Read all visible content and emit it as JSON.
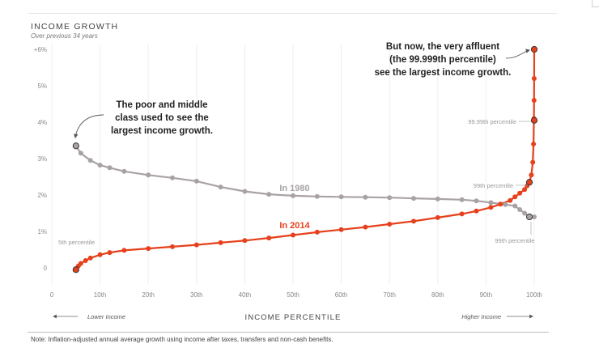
{
  "header": {
    "title": "INCOME GROWTH",
    "subtitle": "Over previous 34 years"
  },
  "footer": {
    "note": "Note: Inflation-adjusted annual average growth using income after taxes, transfers and non-cash benefits."
  },
  "colors": {
    "series_1980": "#a9a2a4",
    "series_2014": "#e6401c",
    "grid": "#eeeeee",
    "text": "#333333"
  },
  "chart_data": {
    "type": "line",
    "title": "INCOME GROWTH",
    "subtitle": "Over previous 34 years",
    "xlabel": "INCOME PERCENTILE",
    "ylabel": "",
    "xlim": [
      0,
      100
    ],
    "ylim": [
      -0.5,
      6.3
    ],
    "grid": true,
    "x_ticks": [
      {
        "value": 0,
        "label": "0"
      },
      {
        "value": 10,
        "label": "10th"
      },
      {
        "value": 20,
        "label": "20th"
      },
      {
        "value": 30,
        "label": "30th"
      },
      {
        "value": 40,
        "label": "40th"
      },
      {
        "value": 50,
        "label": "50th"
      },
      {
        "value": 60,
        "label": "60th"
      },
      {
        "value": 70,
        "label": "70th"
      },
      {
        "value": 80,
        "label": "80th"
      },
      {
        "value": 90,
        "label": "90th"
      },
      {
        "value": 100,
        "label": "100th"
      }
    ],
    "y_ticks": [
      {
        "value": 0,
        "label": "0"
      },
      {
        "value": 1,
        "label": "1%"
      },
      {
        "value": 2,
        "label": "2%"
      },
      {
        "value": 3,
        "label": "3%"
      },
      {
        "value": 4,
        "label": "4%"
      },
      {
        "value": 5,
        "label": "5%"
      },
      {
        "value": 6,
        "label": "+6%"
      }
    ],
    "x_axis_notes": {
      "left": "Lower Income",
      "right": "Higher Income"
    },
    "series": [
      {
        "name": "In 1980",
        "points": [
          {
            "x": 5,
            "y": 3.35
          },
          {
            "x": 6,
            "y": 3.15
          },
          {
            "x": 8,
            "y": 2.95
          },
          {
            "x": 10,
            "y": 2.82
          },
          {
            "x": 12,
            "y": 2.75
          },
          {
            "x": 15,
            "y": 2.65
          },
          {
            "x": 20,
            "y": 2.55
          },
          {
            "x": 25,
            "y": 2.47
          },
          {
            "x": 30,
            "y": 2.38
          },
          {
            "x": 35,
            "y": 2.22
          },
          {
            "x": 40,
            "y": 2.1
          },
          {
            "x": 45,
            "y": 2.02
          },
          {
            "x": 50,
            "y": 1.98
          },
          {
            "x": 55,
            "y": 1.96
          },
          {
            "x": 60,
            "y": 1.95
          },
          {
            "x": 65,
            "y": 1.94
          },
          {
            "x": 70,
            "y": 1.93
          },
          {
            "x": 75,
            "y": 1.91
          },
          {
            "x": 80,
            "y": 1.89
          },
          {
            "x": 85,
            "y": 1.87
          },
          {
            "x": 88,
            "y": 1.84
          },
          {
            "x": 91,
            "y": 1.79
          },
          {
            "x": 94,
            "y": 1.74
          },
          {
            "x": 96,
            "y": 1.7
          },
          {
            "x": 97,
            "y": 1.6
          },
          {
            "x": 98,
            "y": 1.5
          },
          {
            "x": 99,
            "y": 1.4
          },
          {
            "x": 100,
            "y": 1.4
          }
        ]
      },
      {
        "name": "In 2014",
        "points": [
          {
            "x": 5,
            "y": -0.05
          },
          {
            "x": 5.5,
            "y": 0.05
          },
          {
            "x": 6,
            "y": 0.12
          },
          {
            "x": 7,
            "y": 0.2
          },
          {
            "x": 8,
            "y": 0.27
          },
          {
            "x": 10,
            "y": 0.36
          },
          {
            "x": 12,
            "y": 0.42
          },
          {
            "x": 15,
            "y": 0.48
          },
          {
            "x": 20,
            "y": 0.53
          },
          {
            "x": 25,
            "y": 0.58
          },
          {
            "x": 30,
            "y": 0.63
          },
          {
            "x": 35,
            "y": 0.69
          },
          {
            "x": 40,
            "y": 0.75
          },
          {
            "x": 45,
            "y": 0.82
          },
          {
            "x": 50,
            "y": 0.9
          },
          {
            "x": 55,
            "y": 0.98
          },
          {
            "x": 60,
            "y": 1.05
          },
          {
            "x": 65,
            "y": 1.12
          },
          {
            "x": 70,
            "y": 1.2
          },
          {
            "x": 75,
            "y": 1.28
          },
          {
            "x": 80,
            "y": 1.38
          },
          {
            "x": 85,
            "y": 1.48
          },
          {
            "x": 88,
            "y": 1.56
          },
          {
            "x": 91,
            "y": 1.66
          },
          {
            "x": 93,
            "y": 1.75
          },
          {
            "x": 95,
            "y": 1.85
          },
          {
            "x": 96,
            "y": 1.95
          },
          {
            "x": 97,
            "y": 2.05
          },
          {
            "x": 98,
            "y": 2.15
          },
          {
            "x": 98.5,
            "y": 2.25
          },
          {
            "x": 99,
            "y": 2.35
          },
          {
            "x": 99.4,
            "y": 2.55
          },
          {
            "x": 99.7,
            "y": 2.9
          },
          {
            "x": 99.85,
            "y": 3.4
          },
          {
            "x": 99.93,
            "y": 4.1
          },
          {
            "x": 99.97,
            "y": 4.6
          },
          {
            "x": 99.99,
            "y": 5.2
          },
          {
            "x": 100,
            "y": 6.0
          }
        ]
      }
    ],
    "series_labels": [
      "In 1980",
      "In 2014"
    ],
    "annotations": [
      "The poor and middle",
      "class used to see the",
      "largest income growth.",
      "But now, the very affluent",
      "(the 99.999th percentile)",
      "see the largest income growth."
    ],
    "point_labels": [
      "5th percentile",
      "99.99th percentile",
      "99th percentile",
      "99th percentile"
    ]
  }
}
